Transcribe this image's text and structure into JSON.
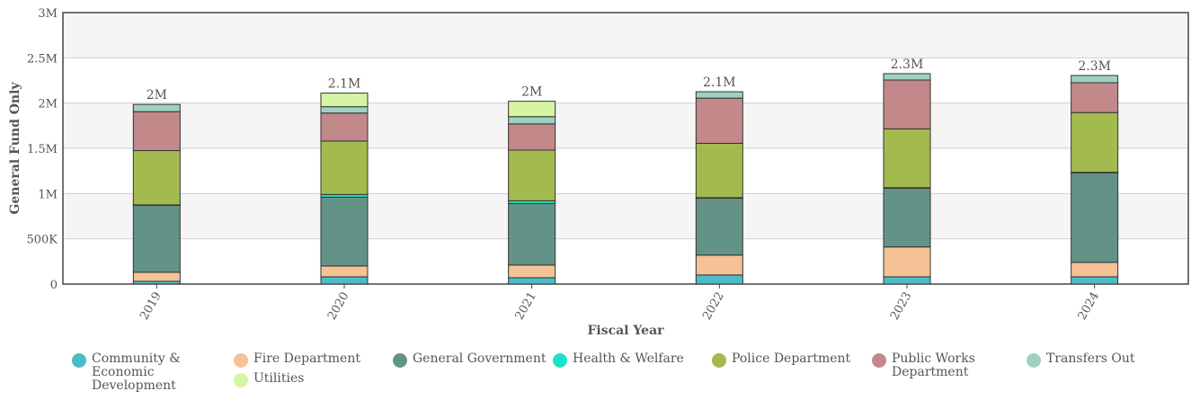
{
  "chart_data": {
    "type": "bar",
    "stacked": true,
    "xlabel": "Fiscal Year",
    "ylabel": "General Fund Only",
    "categories": [
      "2019",
      "2020",
      "2021",
      "2022",
      "2023",
      "2024"
    ],
    "ylim": [
      0,
      3000000
    ],
    "yticks": [
      0,
      500000,
      1000000,
      1500000,
      2000000,
      2500000,
      3000000
    ],
    "ytick_labels": [
      "0",
      "500K",
      "1M",
      "1.5M",
      "2M",
      "2.5M",
      "3M"
    ],
    "totals_labels": [
      "2M",
      "2.1M",
      "2M",
      "2.1M",
      "2.3M",
      "2.3M"
    ],
    "grid": true,
    "legend_position": "bottom",
    "series": [
      {
        "name": "Community & Economic Development",
        "color": "#4bbcc8",
        "values": [
          30000,
          80000,
          70000,
          100000,
          80000,
          80000
        ]
      },
      {
        "name": "Fire Department",
        "color": "#f5c196",
        "values": [
          100000,
          120000,
          140000,
          220000,
          330000,
          160000
        ]
      },
      {
        "name": "General Government",
        "color": "#639387",
        "values": [
          740000,
          760000,
          680000,
          630000,
          650000,
          990000
        ]
      },
      {
        "name": "Health & Welfare",
        "color": "#1de4c6",
        "values": [
          5000,
          30000,
          30000,
          5000,
          5000,
          5000
        ]
      },
      {
        "name": "Police Department",
        "color": "#a3bb4e",
        "values": [
          600000,
          590000,
          560000,
          600000,
          650000,
          660000
        ]
      },
      {
        "name": "Public Works Department",
        "color": "#c3888a",
        "values": [
          430000,
          310000,
          290000,
          500000,
          540000,
          330000
        ]
      },
      {
        "name": "Transfers Out",
        "color": "#9ed2c0",
        "values": [
          80000,
          70000,
          80000,
          70000,
          70000,
          80000
        ]
      },
      {
        "name": "Utilities",
        "color": "#d5f5a2",
        "values": [
          0,
          150000,
          170000,
          0,
          0,
          0
        ]
      }
    ]
  },
  "legend": {
    "items": [
      {
        "label": "Community &\nEconomic\nDevelopment",
        "color": "#4bbcc8"
      },
      {
        "label": "Fire Department",
        "color": "#f5c196"
      },
      {
        "label": "General Government",
        "color": "#639387"
      },
      {
        "label": "Health & Welfare",
        "color": "#1de4c6"
      },
      {
        "label": "Police Department",
        "color": "#a3bb4e"
      },
      {
        "label": "Public Works\nDepartment",
        "color": "#c3888a"
      },
      {
        "label": "Transfers Out",
        "color": "#9ed2c0"
      },
      {
        "label": "Utilities",
        "color": "#d5f5a2"
      }
    ]
  }
}
